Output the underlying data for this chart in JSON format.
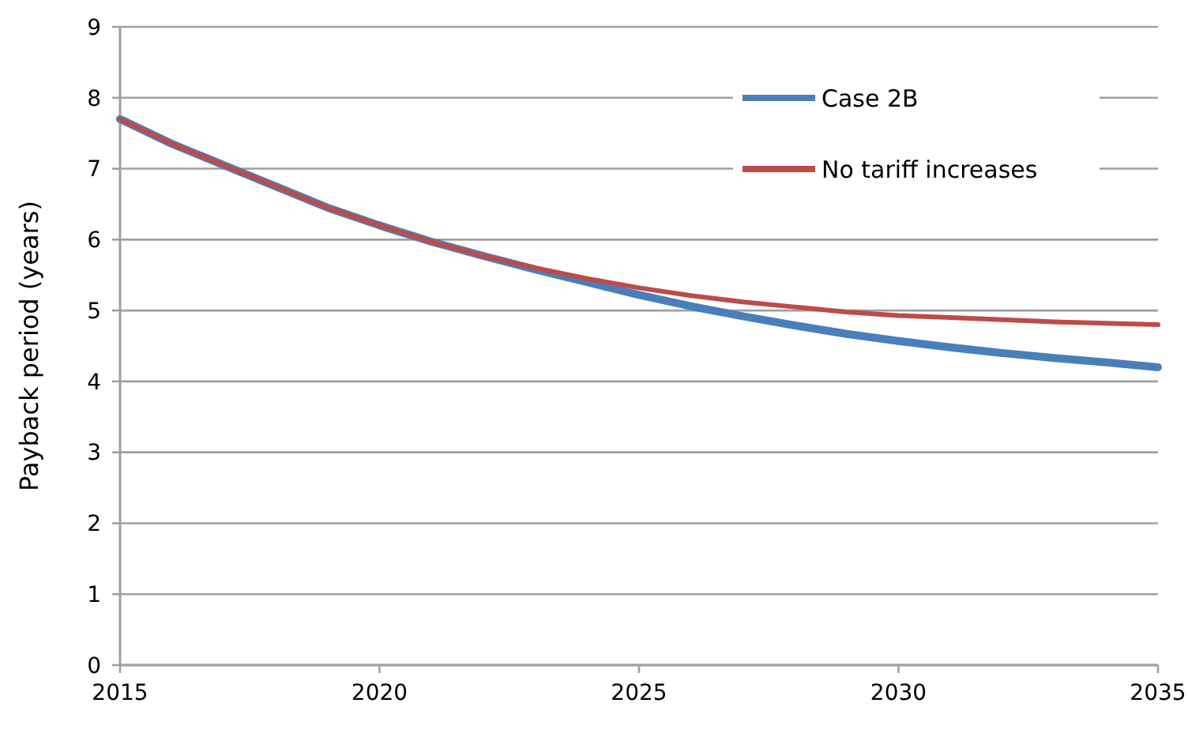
{
  "chart_data": {
    "type": "line",
    "ylabel": "Payback period (years)",
    "x": [
      2015,
      2016,
      2017,
      2018,
      2019,
      2020,
      2021,
      2022,
      2023,
      2024,
      2025,
      2026,
      2027,
      2028,
      2029,
      2030,
      2031,
      2032,
      2033,
      2034,
      2035
    ],
    "series": [
      {
        "name": "Case 2B",
        "color": "#4a7ebb",
        "values": [
          7.7,
          7.35,
          7.05,
          6.75,
          6.45,
          6.2,
          5.97,
          5.77,
          5.58,
          5.4,
          5.22,
          5.06,
          4.92,
          4.79,
          4.67,
          4.57,
          4.48,
          4.4,
          4.33,
          4.27,
          4.2
        ]
      },
      {
        "name": "No tariff increases",
        "color": "#be4b48",
        "values": [
          7.7,
          7.35,
          7.05,
          6.75,
          6.45,
          6.2,
          5.97,
          5.77,
          5.6,
          5.45,
          5.32,
          5.21,
          5.12,
          5.05,
          4.98,
          4.93,
          4.9,
          4.87,
          4.84,
          4.82,
          4.8
        ]
      }
    ],
    "xlim": [
      2015,
      2035
    ],
    "xticks": [
      2015,
      2020,
      2025,
      2030,
      2035
    ],
    "ylim": [
      0,
      9
    ],
    "yticks": [
      0,
      1,
      2,
      3,
      4,
      5,
      6,
      7,
      8,
      9
    ],
    "grid": "y",
    "legend": "top right",
    "marker": "none",
    "line_style": "solid"
  }
}
